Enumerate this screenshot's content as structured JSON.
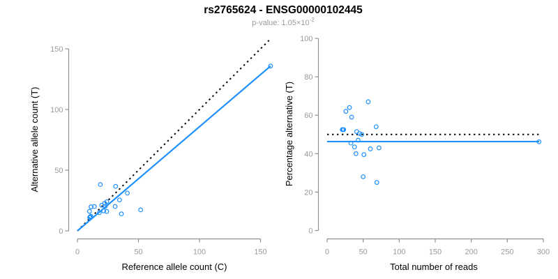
{
  "header": {
    "title": "rs2765624 - ENSG00000102445",
    "subtitle_prefix": "p-value: 1.05×10",
    "subtitle_exponent": "-2"
  },
  "colors": {
    "accent_blue": "#1E90FF",
    "reference_black": "#000000",
    "axis_gray": "#8f8f8f",
    "tick_label_gray": "#9a9a9a"
  },
  "chart_data": [
    {
      "type": "scatter",
      "panel": "left",
      "xlabel": "Reference allele count (C)",
      "ylabel": "Alternative allele count (T)",
      "xlim": [
        0,
        160
      ],
      "ylim": [
        0,
        160
      ],
      "xticks": [
        0,
        50,
        100,
        150
      ],
      "yticks": [
        0,
        50,
        100,
        150
      ],
      "grid": false,
      "points": [
        [
          10.0,
          11.0
        ],
        [
          10.5,
          11.6
        ],
        [
          10.9,
          12.1
        ],
        [
          9.9,
          16.1
        ],
        [
          11.2,
          19.8
        ],
        [
          18.0,
          15.0
        ],
        [
          13.9,
          20.1
        ],
        [
          21.5,
          16.5
        ],
        [
          24.0,
          16.0
        ],
        [
          19.9,
          21.1
        ],
        [
          22.8,
          20.2
        ],
        [
          22.3,
          22.7
        ],
        [
          24.0,
          24.0
        ],
        [
          36.0,
          14.0
        ],
        [
          30.9,
          20.1
        ],
        [
          18.8,
          38.2
        ],
        [
          34.5,
          25.5
        ],
        [
          31.3,
          36.7
        ],
        [
          51.8,
          17.3
        ],
        [
          40.9,
          31.1
        ],
        [
          158.2,
          135.8
        ]
      ],
      "lines": [
        {
          "name": "identity-line",
          "style": "dotted",
          "color": "#000000",
          "x1": 0,
          "y1": 0,
          "x2": 157.5,
          "y2": 157.5
        },
        {
          "name": "fit-line",
          "style": "solid",
          "color": "#1E90FF",
          "x1": 0,
          "y1": 0,
          "x2": 158.2,
          "y2": 135.8
        }
      ]
    },
    {
      "type": "scatter",
      "panel": "right",
      "xlabel": "Total number of reads",
      "ylabel": "Percentage alternative (T)",
      "xlim": [
        0,
        300
      ],
      "ylim": [
        0,
        100
      ],
      "xticks": [
        0,
        50,
        100,
        150,
        200,
        250,
        300
      ],
      "yticks": [
        0,
        20,
        40,
        60,
        80,
        100
      ],
      "grid": false,
      "points": [
        [
          21,
          52.5
        ],
        [
          22,
          52.5
        ],
        [
          23,
          52.5
        ],
        [
          26,
          62
        ],
        [
          31,
          64
        ],
        [
          33,
          45.5
        ],
        [
          34,
          59
        ],
        [
          38,
          43.5
        ],
        [
          40,
          40
        ],
        [
          41,
          51.5
        ],
        [
          43,
          47
        ],
        [
          45,
          50.5
        ],
        [
          48,
          50
        ],
        [
          50,
          28
        ],
        [
          51,
          39.5
        ],
        [
          57,
          67
        ],
        [
          60,
          42.5
        ],
        [
          68,
          54
        ],
        [
          69,
          25
        ],
        [
          72,
          43
        ],
        [
          294,
          46.2
        ]
      ],
      "lines": [
        {
          "name": "expected-50pct-line",
          "style": "dotted",
          "color": "#000000",
          "x1": 0,
          "y1": 50,
          "x2": 296,
          "y2": 50
        },
        {
          "name": "mean-pct-line",
          "style": "solid",
          "color": "#1E90FF",
          "x1": 0,
          "y1": 46.3,
          "x2": 294.5,
          "y2": 46.3
        }
      ]
    }
  ]
}
